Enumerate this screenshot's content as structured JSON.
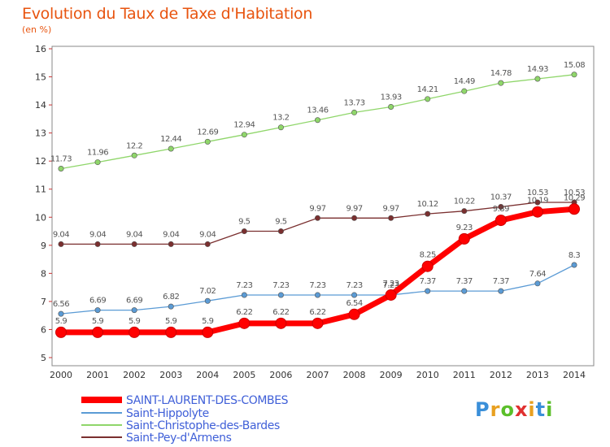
{
  "title": "Evolution du Taux de Taxe d'Habitation",
  "subtitle": "(en %)",
  "logo": "Proxiti",
  "chart_data": {
    "type": "line",
    "x": [
      "2000",
      "2001",
      "2002",
      "2003",
      "2004",
      "2005",
      "2006",
      "2007",
      "2008",
      "2009",
      "2010",
      "2011",
      "2012",
      "2013",
      "2014"
    ],
    "ylim": [
      5,
      16
    ],
    "yticks": [
      5,
      6,
      7,
      8,
      9,
      10,
      11,
      12,
      13,
      14,
      15,
      16
    ],
    "grid": false,
    "legend_position": "bottom-left",
    "series": [
      {
        "name": "SAINT-LAURENT-DES-COMBES",
        "color": "#ff0000",
        "values": [
          5.9,
          5.9,
          5.9,
          5.9,
          5.9,
          6.22,
          6.22,
          6.22,
          6.54,
          7.23,
          8.25,
          9.23,
          9.89,
          10.19,
          10.29
        ],
        "labels": [
          "5.9",
          "5.9",
          "5.9",
          "5.9",
          "5.9",
          "6.22",
          "6.22",
          "6.22",
          "6.54",
          "7.23",
          "8.25",
          "9.23",
          "9.89",
          "10.19",
          "10.29"
        ]
      },
      {
        "name": "Saint-Hippolyte",
        "color": "#5b9bd5",
        "values": [
          6.56,
          6.69,
          6.69,
          6.82,
          7.02,
          7.23,
          7.23,
          7.23,
          7.23,
          7.23,
          7.37,
          7.37,
          7.37,
          7.64,
          8.3
        ],
        "labels": [
          "6.56",
          "6.69",
          "6.69",
          "6.82",
          "7.02",
          "7.23",
          "7.23",
          "7.23",
          "7.23",
          "7.23",
          "7.37",
          "7.37",
          "7.37",
          "7.64",
          "8.3"
        ]
      },
      {
        "name": "Saint-Christophe-des-Bardes",
        "color": "#8fd66a",
        "values": [
          11.73,
          11.96,
          12.2,
          12.44,
          12.69,
          12.94,
          13.2,
          13.46,
          13.73,
          13.93,
          14.21,
          14.49,
          14.78,
          14.93,
          15.08
        ],
        "labels": [
          "11.73",
          "11.96",
          "12.2",
          "12.44",
          "12.69",
          "12.94",
          "13.2",
          "13.46",
          "13.73",
          "13.93",
          "14.21",
          "14.49",
          "14.78",
          "14.93",
          "15.08"
        ]
      },
      {
        "name": "Saint-Pey-d'Armens",
        "color": "#7a2f2f",
        "values": [
          9.04,
          9.04,
          9.04,
          9.04,
          9.04,
          9.5,
          9.5,
          9.97,
          9.97,
          9.97,
          10.12,
          10.22,
          10.37,
          10.53,
          10.53
        ],
        "labels": [
          "9.04",
          "9.04",
          "9.04",
          "9.04",
          "9.04",
          "9.5",
          "9.5",
          "9.97",
          "9.97",
          "9.97",
          "10.12",
          "10.22",
          "10.37",
          "10.53",
          "10.53"
        ]
      }
    ]
  }
}
